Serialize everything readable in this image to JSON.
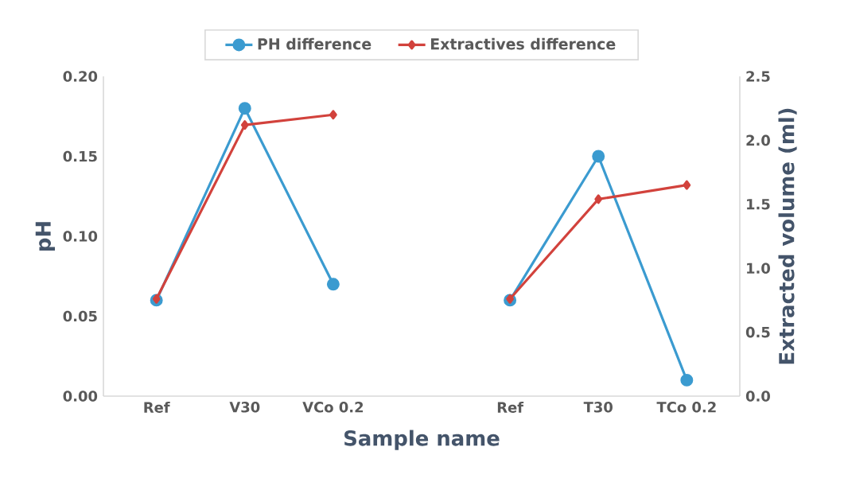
{
  "chart_data": {
    "type": "line",
    "xlabel": "Sample name",
    "ylabel": "pH",
    "y2label": "Extracted volume (ml)",
    "categories": [
      "Ref",
      "V30",
      "VCo 0.2",
      null,
      "Ref",
      "T30",
      "TCo 0.2"
    ],
    "series": [
      {
        "name": "PH difference",
        "color": "#3b9bd0",
        "marker": "circle",
        "values": [
          0.06,
          0.18,
          0.07,
          null,
          0.06,
          0.15,
          0.01
        ]
      },
      {
        "name": "Extractives difference",
        "color": "#d2423c",
        "marker": "diamond",
        "axis": "y2",
        "values": [
          0.76,
          2.12,
          2.2,
          null,
          0.76,
          1.54,
          1.65
        ]
      }
    ],
    "ylim": [
      0,
      0.2
    ],
    "yticks": [
      {
        "value": 0,
        "label": "0.00"
      },
      {
        "value": 0.05,
        "label": "0.05"
      },
      {
        "value": 0.1,
        "label": "0.10"
      },
      {
        "value": 0.15,
        "label": "0.15"
      },
      {
        "value": 0.2,
        "label": "0.20"
      }
    ],
    "y2lim": [
      0,
      2.5
    ],
    "y2ticks": [
      {
        "value": 0,
        "label": "0.0"
      },
      {
        "value": 0.5,
        "label": "0.5"
      },
      {
        "value": 1,
        "label": "1.0"
      },
      {
        "value": 1.5,
        "label": "1.5"
      },
      {
        "value": 2,
        "label": "2.0"
      },
      {
        "value": 2.5,
        "label": "2.5"
      }
    ],
    "legend": "top",
    "grid": false
  }
}
